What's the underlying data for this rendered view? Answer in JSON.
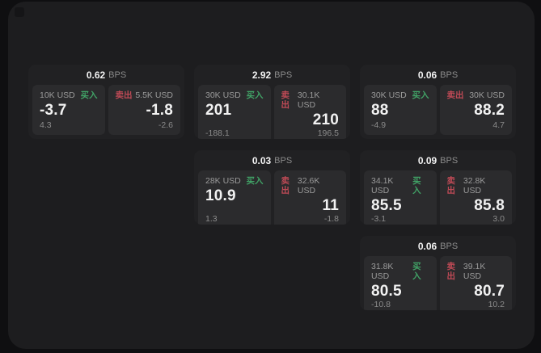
{
  "colors": {
    "bg": "#0f0f11",
    "panel": "#1d1d1f",
    "card": "#212123",
    "tile": "#2b2b2d",
    "buy": "#41a266",
    "sell": "#bf4a56",
    "text": "#f2f2f2",
    "muted": "#8b8b8b"
  },
  "labels": {
    "bps": "BPS",
    "buy": "买入",
    "sell": "卖出"
  },
  "cards": [
    {
      "row": 1,
      "col": 1,
      "bps": "0.62",
      "buy": {
        "size": "10K USD",
        "price": "-3.7",
        "delta": "4.3"
      },
      "sell": {
        "size": "5.5K USD",
        "price": "-1.8",
        "delta": "-2.6"
      }
    },
    {
      "row": 1,
      "col": 2,
      "bps": "2.92",
      "buy": {
        "size": "30K USD",
        "price": "201",
        "delta": "-188.1"
      },
      "sell": {
        "size": "30.1K USD",
        "price": "210",
        "delta": "196.5"
      }
    },
    {
      "row": 1,
      "col": 3,
      "bps": "0.06",
      "buy": {
        "size": "30K USD",
        "price": "88",
        "delta": "-4.9"
      },
      "sell": {
        "size": "30K USD",
        "price": "88.2",
        "delta": "4.7"
      }
    },
    {
      "row": 2,
      "col": 2,
      "bps": "0.03",
      "buy": {
        "size": "28K USD",
        "price": "10.9",
        "delta": "1.3"
      },
      "sell": {
        "size": "32.6K USD",
        "price": "11",
        "delta": "-1.8"
      }
    },
    {
      "row": 2,
      "col": 3,
      "bps": "0.09",
      "buy": {
        "size": "34.1K USD",
        "price": "85.5",
        "delta": "-3.1"
      },
      "sell": {
        "size": "32.8K USD",
        "price": "85.8",
        "delta": "3.0"
      }
    },
    {
      "row": 3,
      "col": 3,
      "bps": "0.06",
      "buy": {
        "size": "31.8K USD",
        "price": "80.5",
        "delta": "-10.8"
      },
      "sell": {
        "size": "39.1K USD",
        "price": "80.7",
        "delta": "10.2"
      }
    }
  ]
}
